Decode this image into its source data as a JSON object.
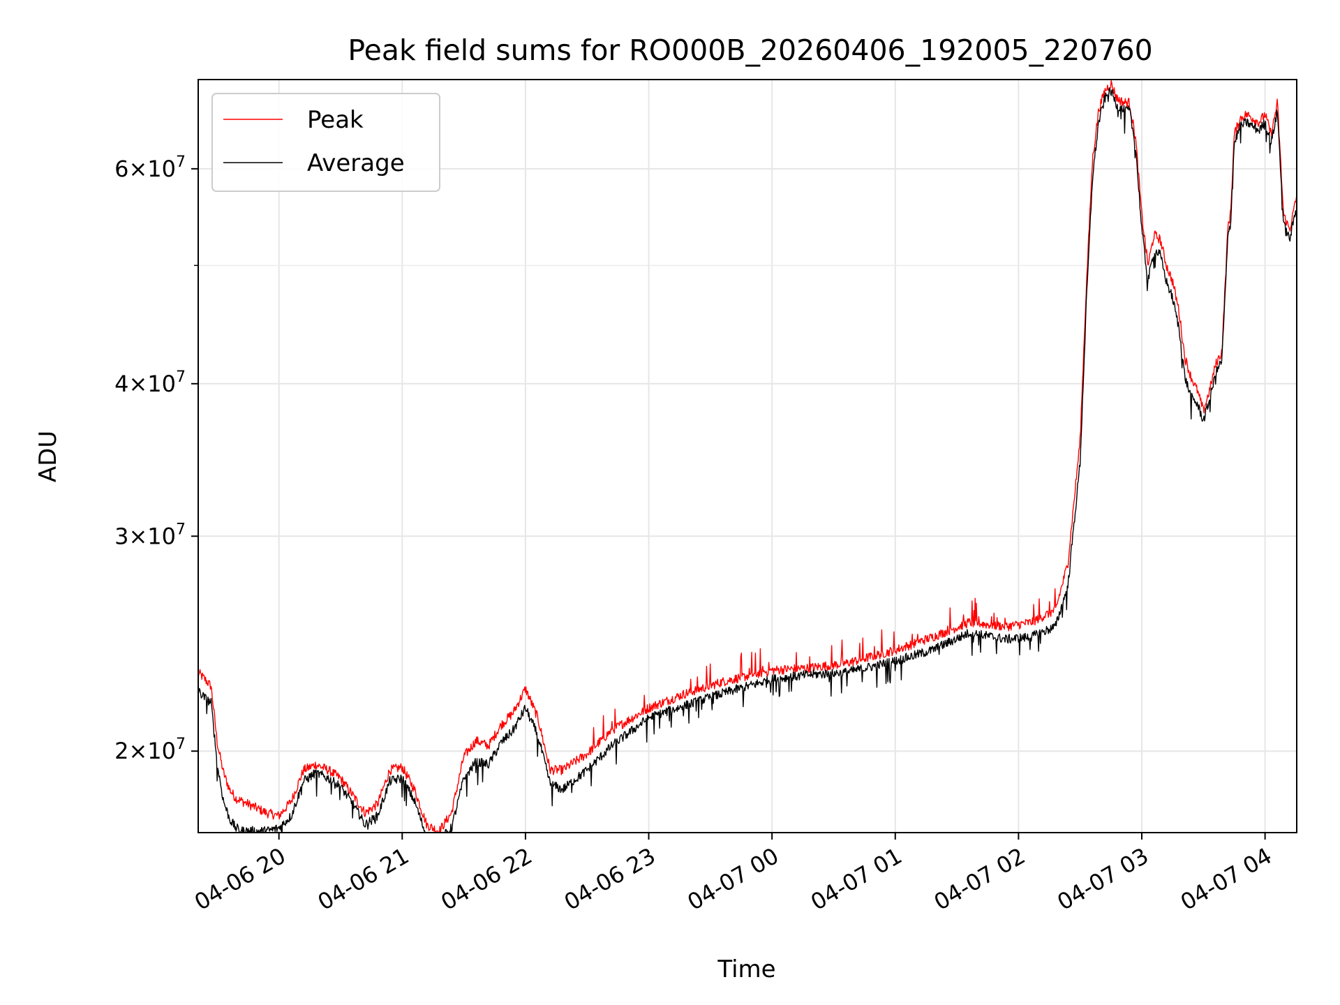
{
  "chart_data": {
    "type": "line",
    "title": "Peak field sums for RO000B_20260406_192005_220760",
    "xlabel": "Time",
    "ylabel": "ADU",
    "yscale": "log",
    "xlim_hours": [
      -0.655,
      8.257
    ],
    "ylim": [
      17150000,
      71000000
    ],
    "grid": true,
    "legend_position": "upper-left",
    "x_ticks": [
      {
        "value": 0,
        "label": "04-06 20"
      },
      {
        "value": 1,
        "label": "04-06 21"
      },
      {
        "value": 2,
        "label": "04-06 22"
      },
      {
        "value": 3,
        "label": "04-06 23"
      },
      {
        "value": 4,
        "label": "04-07 00"
      },
      {
        "value": 5,
        "label": "04-07 01"
      },
      {
        "value": 6,
        "label": "04-07 02"
      },
      {
        "value": 7,
        "label": "04-07 03"
      },
      {
        "value": 8,
        "label": "04-07 04"
      }
    ],
    "y_ticks": [
      {
        "value": 20000000,
        "base": "2",
        "exp": "7"
      },
      {
        "value": 30000000,
        "base": "3",
        "exp": "7"
      },
      {
        "value": 40000000,
        "base": "4",
        "exp": "7"
      },
      {
        "value": 60000000,
        "base": "6",
        "exp": "7"
      }
    ],
    "y_minor_ticks": [
      50000000
    ],
    "x_unit_note": "hours relative to 04-06 20:00",
    "series": [
      {
        "name": "Peak",
        "color": "#ff0000",
        "x": [
          -0.655,
          -0.6,
          -0.55,
          -0.5,
          -0.45,
          -0.4,
          -0.35,
          -0.3,
          -0.2,
          -0.1,
          0,
          0.1,
          0.2,
          0.3,
          0.4,
          0.5,
          0.6,
          0.7,
          0.8,
          0.9,
          1.0,
          1.1,
          1.2,
          1.3,
          1.4,
          1.5,
          1.6,
          1.7,
          1.8,
          1.9,
          2.0,
          2.1,
          2.2,
          2.3,
          2.5,
          2.7,
          3.0,
          3.3,
          3.6,
          4.0,
          4.3,
          4.6,
          5.0,
          5.3,
          5.6,
          5.9,
          6.1,
          6.3,
          6.4,
          6.5,
          6.55,
          6.6,
          6.65,
          6.7,
          6.75,
          6.8,
          6.85,
          6.9,
          6.95,
          7.0,
          7.05,
          7.1,
          7.15,
          7.2,
          7.25,
          7.3,
          7.35,
          7.4,
          7.45,
          7.5,
          7.55,
          7.6,
          7.65,
          7.7,
          7.72,
          7.75,
          7.8,
          7.85,
          7.9,
          7.95,
          8.0,
          8.05,
          8.1,
          8.15,
          8.2,
          8.257
        ],
        "y": [
          23200000,
          22900000,
          22600000,
          20300000,
          19200000,
          18600000,
          18300000,
          18200000,
          18000000,
          17800000,
          17700000,
          18200000,
          19300000,
          19500000,
          19300000,
          19000000,
          18400000,
          17800000,
          18100000,
          19300000,
          19400000,
          18600000,
          17400000,
          17200000,
          17800000,
          19800000,
          20400000,
          20200000,
          21000000,
          21500000,
          22500000,
          21300000,
          19300000,
          19300000,
          19900000,
          20800000,
          21700000,
          22300000,
          22800000,
          23300000,
          23400000,
          23600000,
          24200000,
          24800000,
          25500000,
          25300000,
          25500000,
          26100000,
          28500000,
          36000000,
          48000000,
          61000000,
          67000000,
          69500000,
          70500000,
          68500000,
          68000000,
          68000000,
          63500000,
          55000000,
          50000000,
          53000000,
          52500000,
          50000000,
          48500000,
          46000000,
          42000000,
          40500000,
          39500000,
          38000000,
          39500000,
          41500000,
          42500000,
          54000000,
          55000000,
          64000000,
          66000000,
          66500000,
          66000000,
          65500000,
          66500000,
          64000000,
          68000000,
          55000000,
          53500000,
          57000000
        ]
      },
      {
        "name": "Average",
        "color": "#000000",
        "x": [
          -0.655,
          -0.6,
          -0.55,
          -0.5,
          -0.45,
          -0.4,
          -0.35,
          -0.3,
          -0.2,
          -0.1,
          0,
          0.1,
          0.2,
          0.3,
          0.4,
          0.5,
          0.6,
          0.7,
          0.8,
          0.9,
          1.0,
          1.1,
          1.2,
          1.3,
          1.4,
          1.5,
          1.6,
          1.7,
          1.8,
          1.9,
          2.0,
          2.1,
          2.2,
          2.3,
          2.5,
          2.7,
          3.0,
          3.3,
          3.6,
          4.0,
          4.3,
          4.6,
          5.0,
          5.3,
          5.6,
          5.9,
          6.1,
          6.3,
          6.4,
          6.5,
          6.55,
          6.6,
          6.65,
          6.7,
          6.75,
          6.8,
          6.85,
          6.9,
          6.95,
          7.0,
          7.05,
          7.1,
          7.15,
          7.2,
          7.25,
          7.3,
          7.35,
          7.4,
          7.45,
          7.5,
          7.55,
          7.6,
          7.65,
          7.7,
          7.72,
          7.75,
          7.8,
          7.85,
          7.9,
          7.95,
          8.0,
          8.05,
          8.1,
          8.15,
          8.2,
          8.257
        ],
        "y": [
          22400000,
          22100000,
          21900000,
          19500000,
          18200000,
          17600000,
          17300000,
          17200000,
          17200000,
          17200000,
          17300000,
          17700000,
          18900000,
          19200000,
          19000000,
          18700000,
          18100000,
          17400000,
          17700000,
          18900000,
          19000000,
          18200000,
          17000000,
          16900000,
          17300000,
          19000000,
          19600000,
          19500000,
          20300000,
          20800000,
          21700000,
          20600000,
          18800000,
          18600000,
          19300000,
          20200000,
          21300000,
          21800000,
          22300000,
          22900000,
          23100000,
          23200000,
          23700000,
          24200000,
          25000000,
          24700000,
          24800000,
          25300000,
          27300000,
          34500000,
          46500000,
          59000000,
          65500000,
          68500000,
          69500000,
          67500000,
          67000000,
          67000000,
          62500000,
          53500000,
          48500000,
          51500000,
          51000000,
          48500000,
          47000000,
          44500000,
          40500000,
          39000000,
          38500000,
          37300000,
          38800000,
          40800000,
          41800000,
          53000000,
          54000000,
          63000000,
          65000000,
          65500000,
          65000000,
          64500000,
          65500000,
          63000000,
          67000000,
          54000000,
          52500000,
          56000000
        ]
      }
    ]
  }
}
